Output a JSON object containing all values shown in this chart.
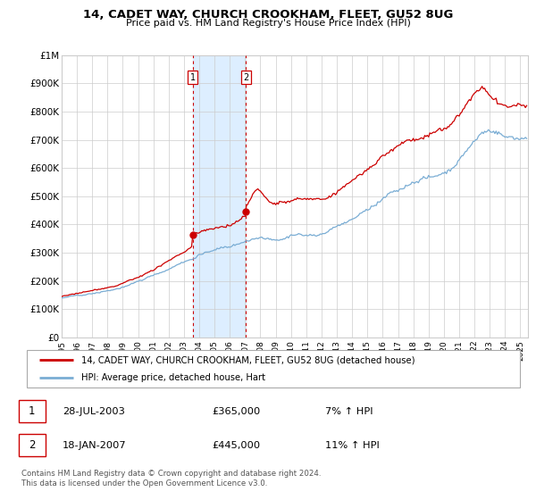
{
  "title": "14, CADET WAY, CHURCH CROOKHAM, FLEET, GU52 8UG",
  "subtitle": "Price paid vs. HM Land Registry's House Price Index (HPI)",
  "legend_line1": "14, CADET WAY, CHURCH CROOKHAM, FLEET, GU52 8UG (detached house)",
  "legend_line2": "HPI: Average price, detached house, Hart",
  "table_entries": [
    {
      "num": "1",
      "date": "28-JUL-2003",
      "price": "£365,000",
      "hpi": "7% ↑ HPI"
    },
    {
      "num": "2",
      "date": "18-JAN-2007",
      "price": "£445,000",
      "hpi": "11% ↑ HPI"
    }
  ],
  "footnote": "Contains HM Land Registry data © Crown copyright and database right 2024.\nThis data is licensed under the Open Government Licence v3.0.",
  "sale1_year": 2003.57,
  "sale1_price": 365000,
  "sale2_year": 2007.04,
  "sale2_price": 445000,
  "ylim": [
    0,
    1000000
  ],
  "xlim_start": 1995,
  "xlim_end": 2025.5,
  "house_color": "#cc0000",
  "hpi_color": "#7aadd4",
  "highlight_color": "#ddeeff",
  "vline_color": "#cc0000",
  "grid_color": "#cccccc",
  "background_color": "#ffffff",
  "hpi_control_points": [
    [
      1995,
      140000
    ],
    [
      1995.5,
      143000
    ],
    [
      1996,
      148000
    ],
    [
      1996.5,
      152000
    ],
    [
      1997,
      158000
    ],
    [
      1997.5,
      163000
    ],
    [
      1998,
      170000
    ],
    [
      1998.5,
      176000
    ],
    [
      1999,
      185000
    ],
    [
      1999.5,
      195000
    ],
    [
      2000,
      207000
    ],
    [
      2000.5,
      218000
    ],
    [
      2001,
      228000
    ],
    [
      2001.5,
      238000
    ],
    [
      2002,
      250000
    ],
    [
      2002.5,
      265000
    ],
    [
      2003,
      278000
    ],
    [
      2003.5,
      290000
    ],
    [
      2004,
      305000
    ],
    [
      2004.5,
      315000
    ],
    [
      2005,
      322000
    ],
    [
      2005.5,
      328000
    ],
    [
      2006,
      335000
    ],
    [
      2006.5,
      345000
    ],
    [
      2007,
      355000
    ],
    [
      2007.5,
      365000
    ],
    [
      2008,
      370000
    ],
    [
      2008.5,
      365000
    ],
    [
      2009,
      355000
    ],
    [
      2009.5,
      360000
    ],
    [
      2010,
      368000
    ],
    [
      2010.5,
      372000
    ],
    [
      2011,
      370000
    ],
    [
      2011.5,
      372000
    ],
    [
      2012,
      375000
    ],
    [
      2012.5,
      382000
    ],
    [
      2013,
      392000
    ],
    [
      2013.5,
      405000
    ],
    [
      2014,
      420000
    ],
    [
      2014.5,
      438000
    ],
    [
      2015,
      455000
    ],
    [
      2015.5,
      472000
    ],
    [
      2016,
      490000
    ],
    [
      2016.5,
      510000
    ],
    [
      2017,
      528000
    ],
    [
      2017.5,
      545000
    ],
    [
      2018,
      558000
    ],
    [
      2018.5,
      568000
    ],
    [
      2019,
      575000
    ],
    [
      2019.5,
      582000
    ],
    [
      2020,
      588000
    ],
    [
      2020.5,
      600000
    ],
    [
      2021,
      625000
    ],
    [
      2021.5,
      655000
    ],
    [
      2022,
      685000
    ],
    [
      2022.5,
      710000
    ],
    [
      2023,
      720000
    ],
    [
      2023.5,
      715000
    ],
    [
      2024,
      710000
    ],
    [
      2024.5,
      705000
    ],
    [
      2025,
      700000
    ]
  ],
  "house_control_points": [
    [
      1995,
      145000
    ],
    [
      1995.5,
      149000
    ],
    [
      1996,
      155000
    ],
    [
      1996.5,
      160000
    ],
    [
      1997,
      167000
    ],
    [
      1997.5,
      173000
    ],
    [
      1998,
      180000
    ],
    [
      1998.5,
      188000
    ],
    [
      1999,
      198000
    ],
    [
      1999.5,
      210000
    ],
    [
      2000,
      222000
    ],
    [
      2000.5,
      234000
    ],
    [
      2001,
      246000
    ],
    [
      2001.5,
      258000
    ],
    [
      2002,
      272000
    ],
    [
      2002.5,
      288000
    ],
    [
      2003,
      305000
    ],
    [
      2003.5,
      320000
    ],
    [
      2003.57,
      365000
    ],
    [
      2004,
      370000
    ],
    [
      2004.5,
      375000
    ],
    [
      2005,
      378000
    ],
    [
      2005.5,
      382000
    ],
    [
      2006,
      388000
    ],
    [
      2006.5,
      400000
    ],
    [
      2007,
      420000
    ],
    [
      2007.04,
      445000
    ],
    [
      2007.5,
      490000
    ],
    [
      2007.8,
      510000
    ],
    [
      2008,
      498000
    ],
    [
      2008.3,
      480000
    ],
    [
      2008.5,
      470000
    ],
    [
      2009,
      450000
    ],
    [
      2009.5,
      455000
    ],
    [
      2010,
      465000
    ],
    [
      2010.5,
      472000
    ],
    [
      2011,
      470000
    ],
    [
      2011.5,
      472000
    ],
    [
      2012,
      475000
    ],
    [
      2012.5,
      488000
    ],
    [
      2013,
      502000
    ],
    [
      2013.5,
      522000
    ],
    [
      2014,
      540000
    ],
    [
      2014.5,
      560000
    ],
    [
      2015,
      578000
    ],
    [
      2015.5,
      598000
    ],
    [
      2016,
      620000
    ],
    [
      2016.5,
      645000
    ],
    [
      2017,
      665000
    ],
    [
      2017.5,
      685000
    ],
    [
      2018,
      700000
    ],
    [
      2018.5,
      712000
    ],
    [
      2019,
      720000
    ],
    [
      2019.5,
      730000
    ],
    [
      2020,
      740000
    ],
    [
      2020.5,
      755000
    ],
    [
      2021,
      780000
    ],
    [
      2021.5,
      810000
    ],
    [
      2022,
      835000
    ],
    [
      2022.5,
      855000
    ],
    [
      2022.8,
      840000
    ],
    [
      2023,
      825000
    ],
    [
      2023.3,
      810000
    ],
    [
      2023.5,
      800000
    ],
    [
      2024,
      790000
    ],
    [
      2024.5,
      785000
    ],
    [
      2025,
      780000
    ]
  ]
}
